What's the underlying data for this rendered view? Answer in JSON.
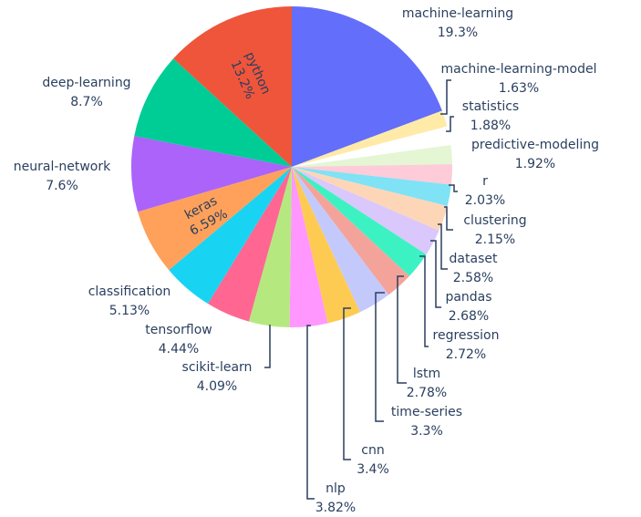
{
  "chart_data": {
    "type": "pie",
    "title": "",
    "direction": "clockwise",
    "start_angle_deg": 90,
    "slices": [
      {
        "label": "machine-learning",
        "value": 19.3,
        "text": "19.3%",
        "color": "#636efa"
      },
      {
        "label": "machine-learning-model",
        "value": 1.63,
        "text": "1.63%",
        "color": "#ffeaa8"
      },
      {
        "label": "statistics",
        "value": 1.88,
        "text": "1.88%",
        "color": "#ffffff"
      },
      {
        "label": "predictive-modeling",
        "value": 1.92,
        "text": "1.92%",
        "color": "#e4f6d4"
      },
      {
        "label": "r",
        "value": 2.03,
        "text": "2.03%",
        "color": "#fecbd9"
      },
      {
        "label": "clustering",
        "value": 2.15,
        "text": "2.15%",
        "color": "#7fe2f5"
      },
      {
        "label": "dataset",
        "value": 2.58,
        "text": "2.58%",
        "color": "#fdd6b8"
      },
      {
        "label": "pandas",
        "value": 2.68,
        "text": "2.68%",
        "color": "#dac7fb"
      },
      {
        "label": "regression",
        "value": 2.72,
        "text": "2.72%",
        "color": "#3df2c2"
      },
      {
        "label": "lstm",
        "value": 2.78,
        "text": "2.78%",
        "color": "#f4a39a"
      },
      {
        "label": "time-series",
        "value": 3.3,
        "text": "3.3%",
        "color": "#c4c9fb"
      },
      {
        "label": "cnn",
        "value": 3.4,
        "text": "3.4%",
        "color": "#fecb52"
      },
      {
        "label": "nlp",
        "value": 3.82,
        "text": "3.82%",
        "color": "#ff97ff"
      },
      {
        "label": "scikit-learn",
        "value": 4.09,
        "text": "4.09%",
        "color": "#b6e880"
      },
      {
        "label": "tensorflow",
        "value": 4.44,
        "text": "4.44%",
        "color": "#ff6692"
      },
      {
        "label": "classification",
        "value": 5.13,
        "text": "5.13%",
        "color": "#19d3f3"
      },
      {
        "label": "keras",
        "value": 6.59,
        "text": "6.59%",
        "color": "#ffa15a",
        "text_position": "inside"
      },
      {
        "label": "neural-network",
        "value": 7.6,
        "text": "7.6%",
        "color": "#ab63fa"
      },
      {
        "label": "deep-learning",
        "value": 8.7,
        "text": "8.7%",
        "color": "#00cc96"
      },
      {
        "label": "python",
        "value": 13.2,
        "text": "13.2%",
        "color": "#ef553b",
        "text_position": "inside"
      }
    ],
    "legend": "none"
  }
}
